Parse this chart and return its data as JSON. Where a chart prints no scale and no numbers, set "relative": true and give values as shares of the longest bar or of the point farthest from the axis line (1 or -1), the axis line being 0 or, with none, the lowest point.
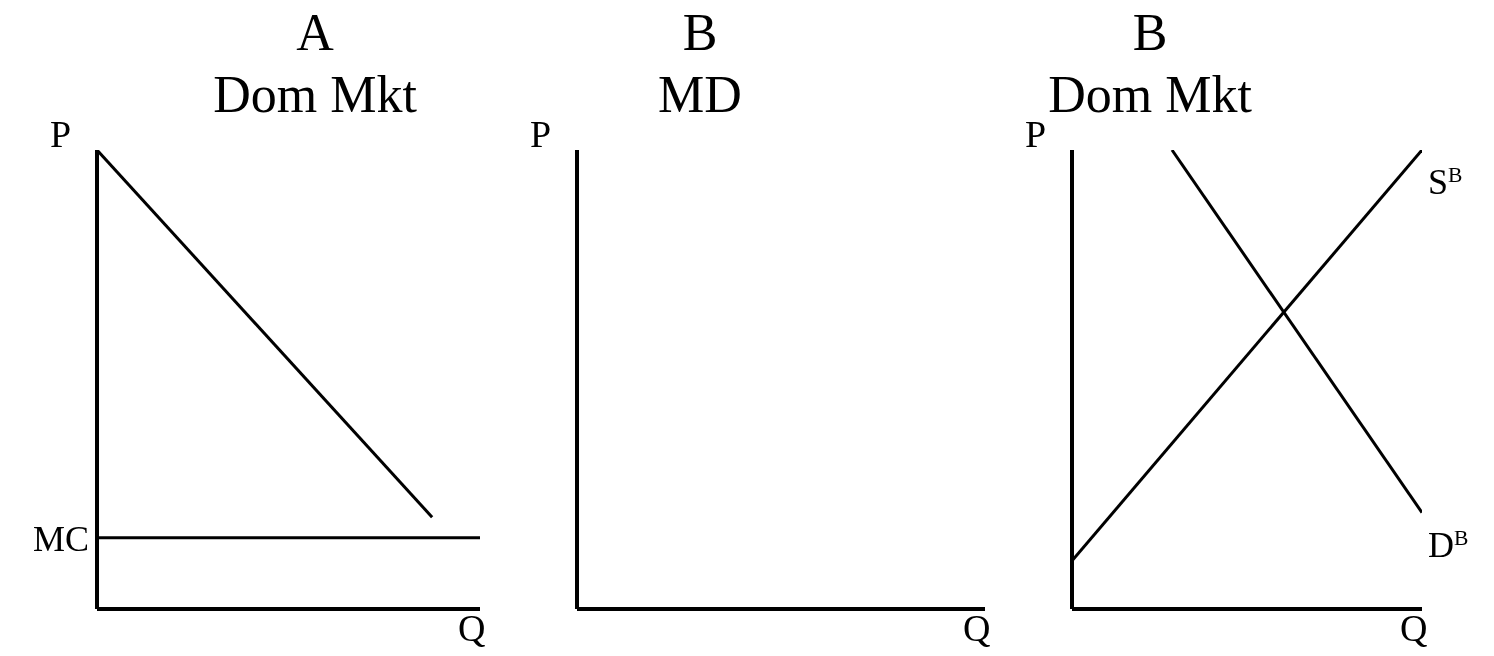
{
  "chart_data": [
    {
      "type": "line",
      "title": "A",
      "subtitle": "Dom Mkt",
      "xlabel": "Q",
      "ylabel": "P",
      "relative": true,
      "categories": [
        null,
        null,
        null,
        null,
        null,
        null,
        null,
        null,
        null
      ],
      "series": [
        {
          "color": "#000000",
          "values": [
            1,
            null,
            null,
            null,
            null,
            null,
            null,
            0.2,
            null
          ]
        }
      ],
      "ref_lines": [
        {
          "axis": "y",
          "value": 0.155,
          "label": "MC",
          "color": "#000000"
        }
      ]
    },
    {
      "type": "other",
      "title": "B",
      "subtitle": "MD",
      "xlabel": "Q",
      "ylabel": "P"
    },
    {
      "type": "line",
      "title": "B",
      "subtitle": "Dom Mkt",
      "xlabel": "Q",
      "ylabel": "P",
      "relative": true,
      "categories": [
        null,
        null,
        null,
        null,
        null,
        null,
        null,
        null
      ],
      "series": [
        {
          "name": "S$^{B}$",
          "color": "#000000",
          "values": [
            0.105,
            null,
            null,
            null,
            null,
            null,
            null,
            1
          ]
        },
        {
          "name": "D$^{B}$",
          "color": "#000000",
          "values": [
            null,
            null,
            1,
            null,
            null,
            null,
            null,
            0.21
          ]
        }
      ]
    }
  ]
}
